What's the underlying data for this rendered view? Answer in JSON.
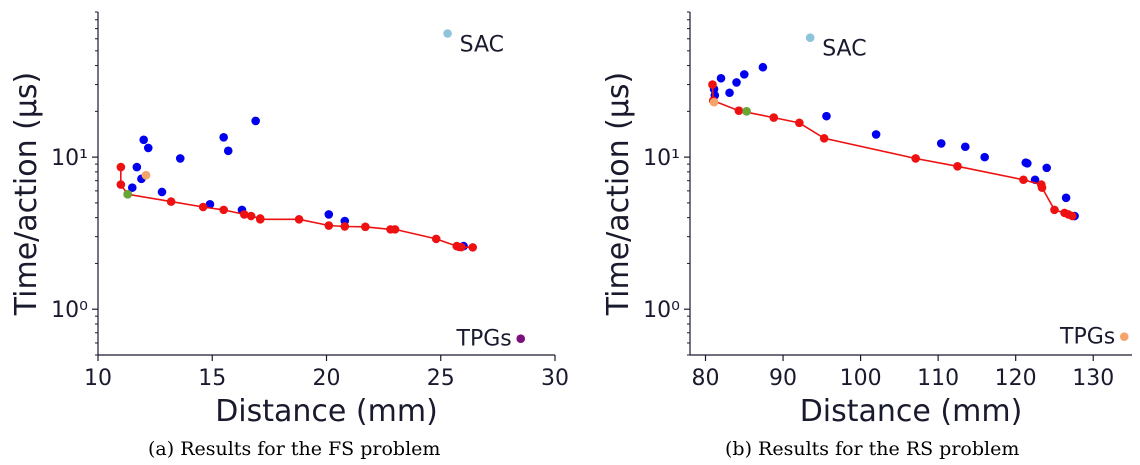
{
  "chart_data": [
    {
      "type": "scatter",
      "xlabel": "Distance (mm)",
      "ylabel": "Time/action (µs)",
      "caption": "(a) Results for the FS problem",
      "xlim": [
        10,
        30
      ],
      "ylim": [
        0.5,
        90
      ],
      "y_scale": "log",
      "xticks": [
        10,
        15,
        20,
        25,
        30
      ],
      "xtick_labels": [
        "10",
        "15",
        "20",
        "25",
        "30"
      ],
      "yticks": [
        1,
        10
      ],
      "ytick_labels": [
        "10⁰",
        "10¹"
      ],
      "grid": false,
      "points": [
        {
          "x": 11.5,
          "y": 6.3,
          "color": "#0000ee"
        },
        {
          "x": 11.7,
          "y": 8.6,
          "color": "#0000ee"
        },
        {
          "x": 11.9,
          "y": 7.2,
          "color": "#0000ee"
        },
        {
          "x": 12.0,
          "y": 13.0,
          "color": "#0000ee"
        },
        {
          "x": 12.2,
          "y": 11.5,
          "color": "#0000ee"
        },
        {
          "x": 12.8,
          "y": 5.9,
          "color": "#0000ee"
        },
        {
          "x": 13.6,
          "y": 9.8,
          "color": "#0000ee"
        },
        {
          "x": 14.9,
          "y": 4.9,
          "color": "#0000ee"
        },
        {
          "x": 15.5,
          "y": 13.5,
          "color": "#0000ee"
        },
        {
          "x": 15.7,
          "y": 11.0,
          "color": "#0000ee"
        },
        {
          "x": 16.3,
          "y": 4.5,
          "color": "#0000ee"
        },
        {
          "x": 16.9,
          "y": 17.3,
          "color": "#0000ee"
        },
        {
          "x": 20.1,
          "y": 4.2,
          "color": "#0000ee"
        },
        {
          "x": 20.8,
          "y": 3.8,
          "color": "#0000ee"
        },
        {
          "x": 26.0,
          "y": 2.6,
          "color": "#0000ee"
        },
        {
          "x": 12.1,
          "y": 7.6,
          "color": "#f4a46a"
        },
        {
          "x": 11.3,
          "y": 5.7,
          "color": "#6aa636"
        },
        {
          "x": 25.3,
          "y": 65,
          "color": "#8ec3dc",
          "label": "SAC"
        },
        {
          "x": 28.5,
          "y": 0.64,
          "color": "#7d0f7d",
          "label": "TPGs"
        }
      ],
      "pareto_front": {
        "color": "#ee1111",
        "points": [
          [
            11.0,
            8.6
          ],
          [
            11.0,
            6.6
          ],
          [
            11.3,
            5.7
          ],
          [
            13.2,
            5.1
          ],
          [
            14.6,
            4.7
          ],
          [
            15.5,
            4.5
          ],
          [
            16.4,
            4.2
          ],
          [
            16.7,
            4.1
          ],
          [
            17.1,
            3.95
          ],
          [
            17.1,
            3.9
          ],
          [
            18.8,
            3.9
          ],
          [
            20.1,
            3.55
          ],
          [
            20.8,
            3.5
          ],
          [
            21.7,
            3.48
          ],
          [
            22.8,
            3.35
          ],
          [
            23.0,
            3.35
          ],
          [
            24.8,
            2.9
          ],
          [
            25.7,
            2.6
          ],
          [
            25.8,
            2.57
          ],
          [
            25.9,
            2.56
          ],
          [
            26.4,
            2.55
          ]
        ]
      }
    },
    {
      "type": "scatter",
      "xlabel": "Distance (mm)",
      "ylabel": "Time/action (µs)",
      "caption": "(b) Results for the RS problem",
      "xlim": [
        78,
        135
      ],
      "ylim": [
        0.5,
        90
      ],
      "y_scale": "log",
      "xticks": [
        80,
        90,
        100,
        110,
        120,
        130
      ],
      "xtick_labels": [
        "80",
        "90",
        "100",
        "110",
        "120",
        "130"
      ],
      "yticks": [
        1,
        10
      ],
      "ytick_labels": [
        "10⁰",
        "10¹"
      ],
      "grid": false,
      "points": [
        {
          "x": 81.1,
          "y": 28,
          "color": "#0000ee"
        },
        {
          "x": 81.2,
          "y": 25.5,
          "color": "#0000ee"
        },
        {
          "x": 82.0,
          "y": 33,
          "color": "#0000ee"
        },
        {
          "x": 83.1,
          "y": 26.5,
          "color": "#0000ee"
        },
        {
          "x": 84.0,
          "y": 31,
          "color": "#0000ee"
        },
        {
          "x": 85.0,
          "y": 35,
          "color": "#0000ee"
        },
        {
          "x": 87.4,
          "y": 39,
          "color": "#0000ee"
        },
        {
          "x": 95.6,
          "y": 18.6,
          "color": "#0000ee"
        },
        {
          "x": 102.0,
          "y": 14.1,
          "color": "#0000ee"
        },
        {
          "x": 110.4,
          "y": 12.3,
          "color": "#0000ee"
        },
        {
          "x": 113.5,
          "y": 11.7,
          "color": "#0000ee"
        },
        {
          "x": 116.0,
          "y": 10.0,
          "color": "#0000ee"
        },
        {
          "x": 121.3,
          "y": 9.2,
          "color": "#0000ee"
        },
        {
          "x": 121.5,
          "y": 9.1,
          "color": "#0000ee"
        },
        {
          "x": 122.5,
          "y": 7.1,
          "color": "#0000ee"
        },
        {
          "x": 124.0,
          "y": 8.5,
          "color": "#0000ee"
        },
        {
          "x": 126.5,
          "y": 5.4,
          "color": "#0000ee"
        },
        {
          "x": 127.6,
          "y": 4.1,
          "color": "#0000ee"
        },
        {
          "x": 81.1,
          "y": 23.0,
          "color": "#f4a46a"
        },
        {
          "x": 85.3,
          "y": 20.0,
          "color": "#6aa636"
        },
        {
          "x": 93.5,
          "y": 61,
          "color": "#8ec3dc",
          "label": "SAC"
        },
        {
          "x": 134.0,
          "y": 0.66,
          "color": "#f4a46a",
          "label": "TPGs"
        }
      ],
      "pareto_front": {
        "color": "#ee1111",
        "points": [
          [
            80.9,
            30
          ],
          [
            81.0,
            23.5
          ],
          [
            84.3,
            20.2
          ],
          [
            88.8,
            18.2
          ],
          [
            92.1,
            16.8
          ],
          [
            95.3,
            13.3
          ],
          [
            107.1,
            9.8
          ],
          [
            112.5,
            8.7
          ],
          [
            121.0,
            7.1
          ],
          [
            123.3,
            6.6
          ],
          [
            123.4,
            6.3
          ],
          [
            125.0,
            4.5
          ],
          [
            126.3,
            4.3
          ],
          [
            126.8,
            4.2
          ],
          [
            127.3,
            4.1
          ]
        ]
      }
    }
  ]
}
